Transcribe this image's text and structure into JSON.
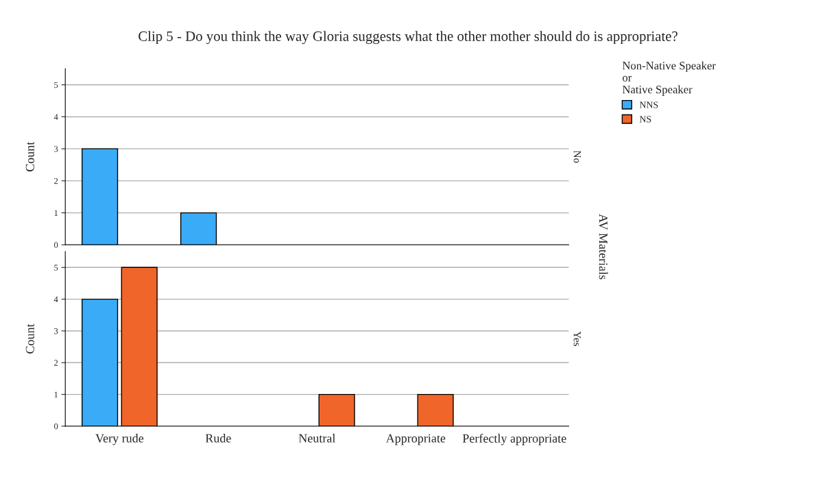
{
  "chart_data": [
    {
      "type": "bar",
      "title": "Clip 5 - Do you think the way Gloria suggests what the other mother should do is appropriate?",
      "ylabel": "Count",
      "legend_title": "Non-Native Speaker\nor\nNative Speaker",
      "categories": [
        null,
        null,
        null,
        null,
        null
      ],
      "series": [
        {
          "name": "NNS",
          "color": "#3aabf7",
          "values": [
            3,
            1,
            null,
            null,
            null
          ]
        },
        {
          "name": "NS",
          "color": "#f0652a",
          "values": [
            null,
            null,
            null,
            null,
            null
          ]
        }
      ],
      "ylim": [
        0,
        5.5
      ],
      "yticks": [
        0,
        1,
        2,
        3,
        4,
        5
      ],
      "grid": "y",
      "legend": "top right",
      "tick_labels": "y",
      "annotations": [
        "No",
        "AV Materials"
      ]
    },
    {
      "type": "bar",
      "ylabel": "Count",
      "categories": [
        "Very rude",
        "Rude",
        "Neutral",
        "Appropriate",
        "Perfectly appropriate"
      ],
      "series": [
        {
          "color": "#3aabf7",
          "values": [
            4,
            null,
            null,
            null,
            null
          ]
        },
        {
          "color": "#f0652a",
          "values": [
            5,
            null,
            1,
            1,
            null
          ]
        }
      ],
      "ylim": [
        0,
        5.5
      ],
      "yticks": [
        0,
        1,
        2,
        3,
        4,
        5
      ],
      "grid": "y",
      "annotations": [
        "Yes"
      ]
    }
  ]
}
